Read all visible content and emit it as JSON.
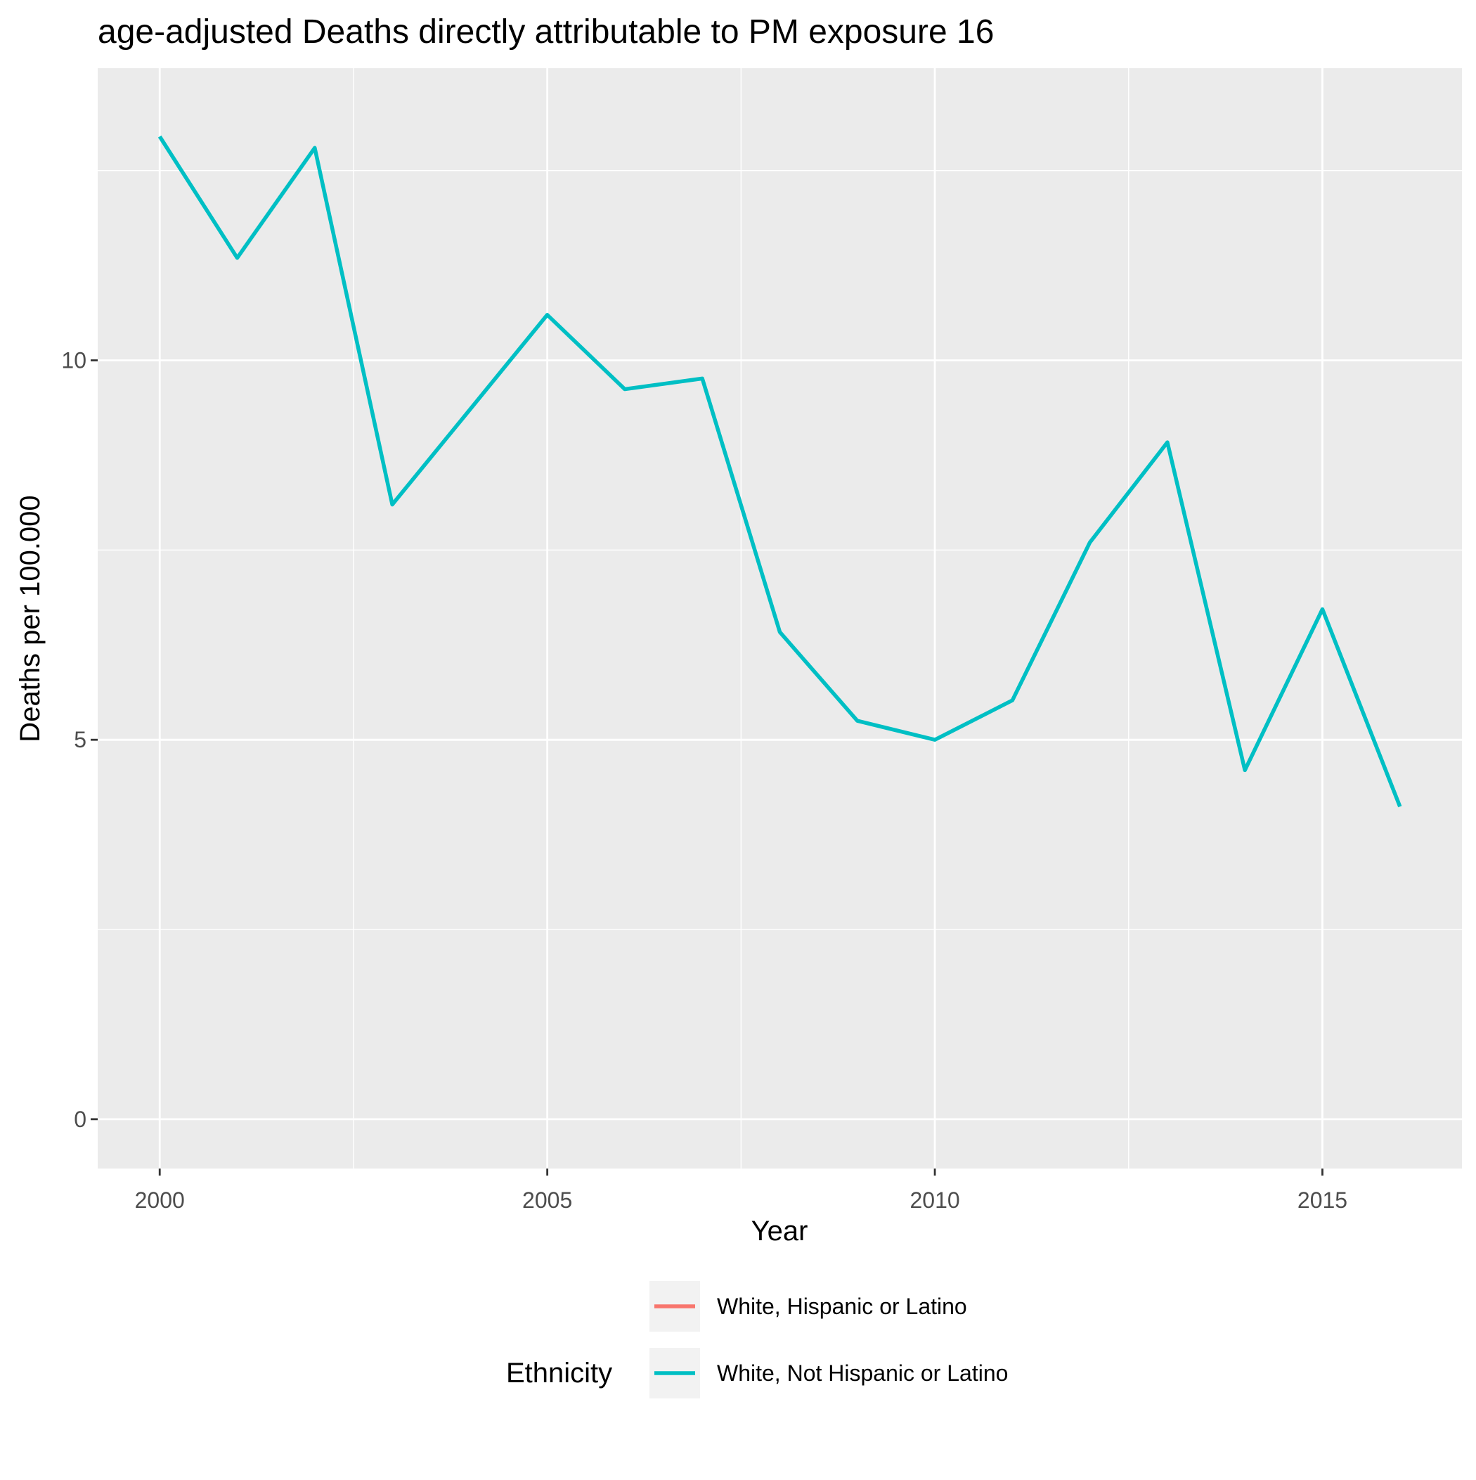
{
  "chart_data": {
    "type": "line",
    "title": "age-adjusted Deaths directly attributable to PM exposure 16",
    "xlabel": "Year",
    "ylabel": "Deaths per 100.000",
    "x": [
      2000,
      2001,
      2002,
      2003,
      2004,
      2005,
      2006,
      2007,
      2008,
      2009,
      2010,
      2011,
      2012,
      2013,
      2014,
      2015,
      2016
    ],
    "x_ticks": [
      2000,
      2005,
      2010,
      2015
    ],
    "x_tick_labels": [
      "2000",
      "2005",
      "2010",
      "2015"
    ],
    "y_ticks": [
      0,
      5,
      10
    ],
    "y_tick_labels": [
      "0",
      "5",
      "10"
    ],
    "xlim": [
      1999.2,
      2016.8
    ],
    "ylim": [
      -0.65,
      13.85
    ],
    "grid": true,
    "series": [
      {
        "name": "White, Not Hispanic or Latino",
        "color": "#00BFC4",
        "values": [
          12.95,
          11.35,
          12.8,
          8.1,
          9.35,
          10.6,
          9.62,
          9.76,
          6.42,
          5.25,
          5.0,
          5.52,
          7.6,
          8.92,
          4.6,
          6.72,
          4.12
        ]
      }
    ],
    "legend": {
      "title": "Ethnicity",
      "position": "bottom",
      "entries": [
        {
          "label": "White, Hispanic or Latino",
          "color": "#F8766D"
        },
        {
          "label": "White, Not Hispanic or Latino",
          "color": "#00BFC4"
        }
      ]
    },
    "panel_color": "#EBEBEB",
    "grid_color": "#FFFFFF"
  }
}
